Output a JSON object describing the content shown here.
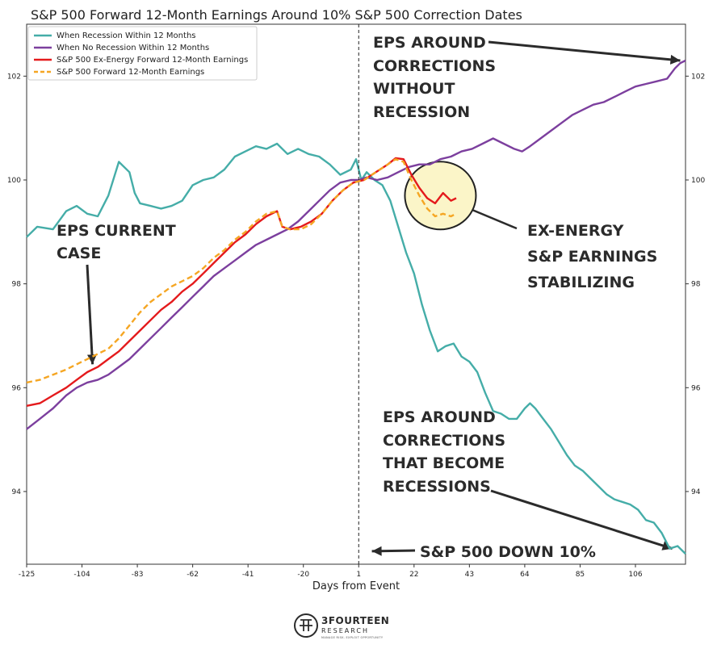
{
  "chart_data": {
    "type": "line",
    "title": "S&P 500 Forward 12-Month Earnings Around 10% S&P 500 Correction Dates",
    "xlabel": "Days from Event",
    "ylabel": "",
    "xlim": [
      -125,
      125
    ],
    "ylim": [
      92.6,
      103.0
    ],
    "x_ticks": [
      -125,
      -104,
      -83,
      -62,
      -41,
      -20,
      1,
      22,
      43,
      64,
      85,
      106
    ],
    "y_ticks": [
      94,
      96,
      98,
      100,
      102
    ],
    "event_line_x": 1,
    "series": [
      {
        "name": "When Recession Within 12 Months",
        "color": "#45ada8",
        "style": "solid",
        "points": [
          [
            -125,
            98.9
          ],
          [
            -121,
            99.1
          ],
          [
            -115,
            99.05
          ],
          [
            -110,
            99.4
          ],
          [
            -106,
            99.5
          ],
          [
            -102,
            99.35
          ],
          [
            -98,
            99.3
          ],
          [
            -94,
            99.7
          ],
          [
            -90,
            100.35
          ],
          [
            -86,
            100.15
          ],
          [
            -84,
            99.75
          ],
          [
            -82,
            99.55
          ],
          [
            -78,
            99.5
          ],
          [
            -74,
            99.45
          ],
          [
            -70,
            99.5
          ],
          [
            -66,
            99.6
          ],
          [
            -62,
            99.9
          ],
          [
            -58,
            100.0
          ],
          [
            -54,
            100.05
          ],
          [
            -50,
            100.2
          ],
          [
            -46,
            100.45
          ],
          [
            -42,
            100.55
          ],
          [
            -38,
            100.65
          ],
          [
            -34,
            100.6
          ],
          [
            -30,
            100.7
          ],
          [
            -26,
            100.5
          ],
          [
            -22,
            100.6
          ],
          [
            -18,
            100.5
          ],
          [
            -14,
            100.45
          ],
          [
            -10,
            100.3
          ],
          [
            -6,
            100.1
          ],
          [
            -2,
            100.2
          ],
          [
            0,
            100.4
          ],
          [
            2,
            100.0
          ],
          [
            4,
            100.15
          ],
          [
            7,
            100.0
          ],
          [
            10,
            99.9
          ],
          [
            13,
            99.6
          ],
          [
            16,
            99.1
          ],
          [
            19,
            98.6
          ],
          [
            22,
            98.2
          ],
          [
            25,
            97.6
          ],
          [
            28,
            97.1
          ],
          [
            31,
            96.7
          ],
          [
            34,
            96.8
          ],
          [
            37,
            96.85
          ],
          [
            40,
            96.6
          ],
          [
            43,
            96.5
          ],
          [
            46,
            96.3
          ],
          [
            49,
            95.9
          ],
          [
            52,
            95.55
          ],
          [
            55,
            95.5
          ],
          [
            58,
            95.4
          ],
          [
            61,
            95.4
          ],
          [
            64,
            95.6
          ],
          [
            66,
            95.7
          ],
          [
            68,
            95.6
          ],
          [
            71,
            95.4
          ],
          [
            74,
            95.2
          ],
          [
            77,
            94.95
          ],
          [
            80,
            94.7
          ],
          [
            83,
            94.5
          ],
          [
            86,
            94.4
          ],
          [
            89,
            94.25
          ],
          [
            92,
            94.1
          ],
          [
            95,
            93.95
          ],
          [
            98,
            93.85
          ],
          [
            101,
            93.8
          ],
          [
            104,
            93.75
          ],
          [
            107,
            93.65
          ],
          [
            110,
            93.45
          ],
          [
            113,
            93.4
          ],
          [
            116,
            93.2
          ],
          [
            119,
            92.9
          ],
          [
            122,
            92.95
          ],
          [
            125,
            92.8
          ]
        ]
      },
      {
        "name": "When No Recession Within 12 Months",
        "color": "#7c3f9e",
        "style": "solid",
        "points": [
          [
            -125,
            95.2
          ],
          [
            -120,
            95.4
          ],
          [
            -115,
            95.6
          ],
          [
            -110,
            95.85
          ],
          [
            -106,
            96.0
          ],
          [
            -102,
            96.1
          ],
          [
            -98,
            96.15
          ],
          [
            -94,
            96.25
          ],
          [
            -90,
            96.4
          ],
          [
            -86,
            96.55
          ],
          [
            -82,
            96.75
          ],
          [
            -78,
            96.95
          ],
          [
            -74,
            97.15
          ],
          [
            -70,
            97.35
          ],
          [
            -66,
            97.55
          ],
          [
            -62,
            97.75
          ],
          [
            -58,
            97.95
          ],
          [
            -54,
            98.15
          ],
          [
            -50,
            98.3
          ],
          [
            -46,
            98.45
          ],
          [
            -42,
            98.6
          ],
          [
            -38,
            98.75
          ],
          [
            -34,
            98.85
          ],
          [
            -30,
            98.95
          ],
          [
            -26,
            99.05
          ],
          [
            -22,
            99.2
          ],
          [
            -18,
            99.4
          ],
          [
            -14,
            99.6
          ],
          [
            -10,
            99.8
          ],
          [
            -6,
            99.95
          ],
          [
            -2,
            100.0
          ],
          [
            1,
            100.0
          ],
          [
            4,
            100.05
          ],
          [
            8,
            100.0
          ],
          [
            12,
            100.05
          ],
          [
            16,
            100.15
          ],
          [
            20,
            100.25
          ],
          [
            24,
            100.3
          ],
          [
            28,
            100.3
          ],
          [
            32,
            100.4
          ],
          [
            36,
            100.45
          ],
          [
            40,
            100.55
          ],
          [
            44,
            100.6
          ],
          [
            48,
            100.7
          ],
          [
            52,
            100.8
          ],
          [
            56,
            100.7
          ],
          [
            60,
            100.6
          ],
          [
            63,
            100.55
          ],
          [
            66,
            100.65
          ],
          [
            70,
            100.8
          ],
          [
            74,
            100.95
          ],
          [
            78,
            101.1
          ],
          [
            82,
            101.25
          ],
          [
            86,
            101.35
          ],
          [
            90,
            101.45
          ],
          [
            94,
            101.5
          ],
          [
            98,
            101.6
          ],
          [
            102,
            101.7
          ],
          [
            106,
            101.8
          ],
          [
            110,
            101.85
          ],
          [
            114,
            101.9
          ],
          [
            118,
            101.95
          ],
          [
            121,
            102.15
          ],
          [
            123,
            102.25
          ],
          [
            125,
            102.3
          ]
        ]
      },
      {
        "name": "S&P 500 Ex-Energy Forward 12-Month Earnings",
        "color": "#e41a1c",
        "style": "solid",
        "points": [
          [
            -125,
            95.65
          ],
          [
            -120,
            95.7
          ],
          [
            -115,
            95.85
          ],
          [
            -110,
            96.0
          ],
          [
            -106,
            96.15
          ],
          [
            -102,
            96.3
          ],
          [
            -98,
            96.4
          ],
          [
            -94,
            96.55
          ],
          [
            -90,
            96.7
          ],
          [
            -86,
            96.9
          ],
          [
            -82,
            97.1
          ],
          [
            -78,
            97.3
          ],
          [
            -74,
            97.5
          ],
          [
            -70,
            97.65
          ],
          [
            -66,
            97.85
          ],
          [
            -62,
            98.0
          ],
          [
            -58,
            98.2
          ],
          [
            -54,
            98.4
          ],
          [
            -50,
            98.6
          ],
          [
            -46,
            98.8
          ],
          [
            -42,
            98.95
          ],
          [
            -38,
            99.15
          ],
          [
            -34,
            99.3
          ],
          [
            -30,
            99.4
          ],
          [
            -28,
            99.1
          ],
          [
            -25,
            99.05
          ],
          [
            -21,
            99.1
          ],
          [
            -17,
            99.2
          ],
          [
            -13,
            99.35
          ],
          [
            -9,
            99.6
          ],
          [
            -5,
            99.8
          ],
          [
            -1,
            99.95
          ],
          [
            3,
            100.0
          ],
          [
            6,
            100.1
          ],
          [
            9,
            100.2
          ],
          [
            12,
            100.3
          ],
          [
            15,
            100.42
          ],
          [
            18,
            100.4
          ],
          [
            21,
            100.1
          ],
          [
            24,
            99.85
          ],
          [
            27,
            99.65
          ],
          [
            30,
            99.55
          ],
          [
            33,
            99.75
          ],
          [
            36,
            99.6
          ],
          [
            38,
            99.65
          ]
        ]
      },
      {
        "name": "S&P 500 Forward 12-Month Earnings",
        "color": "#f5a623",
        "style": "dashed",
        "points": [
          [
            -125,
            96.1
          ],
          [
            -120,
            96.15
          ],
          [
            -115,
            96.25
          ],
          [
            -110,
            96.35
          ],
          [
            -106,
            96.45
          ],
          [
            -102,
            96.55
          ],
          [
            -98,
            96.65
          ],
          [
            -94,
            96.75
          ],
          [
            -90,
            96.95
          ],
          [
            -86,
            97.2
          ],
          [
            -82,
            97.45
          ],
          [
            -78,
            97.65
          ],
          [
            -74,
            97.8
          ],
          [
            -70,
            97.95
          ],
          [
            -66,
            98.05
          ],
          [
            -62,
            98.15
          ],
          [
            -58,
            98.3
          ],
          [
            -54,
            98.5
          ],
          [
            -50,
            98.65
          ],
          [
            -46,
            98.85
          ],
          [
            -42,
            99.0
          ],
          [
            -38,
            99.2
          ],
          [
            -34,
            99.35
          ],
          [
            -30,
            99.4
          ],
          [
            -28,
            99.1
          ],
          [
            -25,
            99.05
          ],
          [
            -21,
            99.05
          ],
          [
            -17,
            99.15
          ],
          [
            -13,
            99.35
          ],
          [
            -9,
            99.6
          ],
          [
            -5,
            99.8
          ],
          [
            -1,
            99.95
          ],
          [
            3,
            100.0
          ],
          [
            6,
            100.1
          ],
          [
            9,
            100.2
          ],
          [
            12,
            100.3
          ],
          [
            15,
            100.4
          ],
          [
            18,
            100.35
          ],
          [
            21,
            100.0
          ],
          [
            24,
            99.7
          ],
          [
            27,
            99.45
          ],
          [
            30,
            99.3
          ],
          [
            33,
            99.35
          ],
          [
            36,
            99.3
          ],
          [
            38,
            99.35
          ]
        ]
      }
    ],
    "annotations": [
      {
        "id": "eps_current",
        "lines": [
          "EPS CURRENT",
          "CASE"
        ],
        "arrow_to": [
          -100,
          96.45
        ]
      },
      {
        "id": "eps_no_recession",
        "lines": [
          "EPS AROUND",
          "CORRECTIONS",
          "WITHOUT",
          "RECESSION"
        ],
        "arrow_to": [
          123,
          102.3
        ]
      },
      {
        "id": "ex_energy",
        "lines": [
          "EX-ENERGY",
          "S&P EARNINGS",
          "STABILIZING"
        ],
        "circle_center": [
          32,
          99.7
        ]
      },
      {
        "id": "eps_recession",
        "lines": [
          "EPS AROUND",
          "CORRECTIONS",
          "THAT BECOME",
          "RECESSIONS"
        ],
        "arrow_to": [
          120,
          92.9
        ]
      },
      {
        "id": "down10",
        "lines": [
          "S&P 500 DOWN 10%"
        ],
        "arrow_to": [
          6,
          92.85
        ]
      }
    ],
    "legend_position": "top-left"
  },
  "brand": {
    "name": "3FOURTEEN",
    "sub": "RESEARCH",
    "tagline": "MANAGE RISK. EXPLOIT OPPORTUNITY"
  }
}
